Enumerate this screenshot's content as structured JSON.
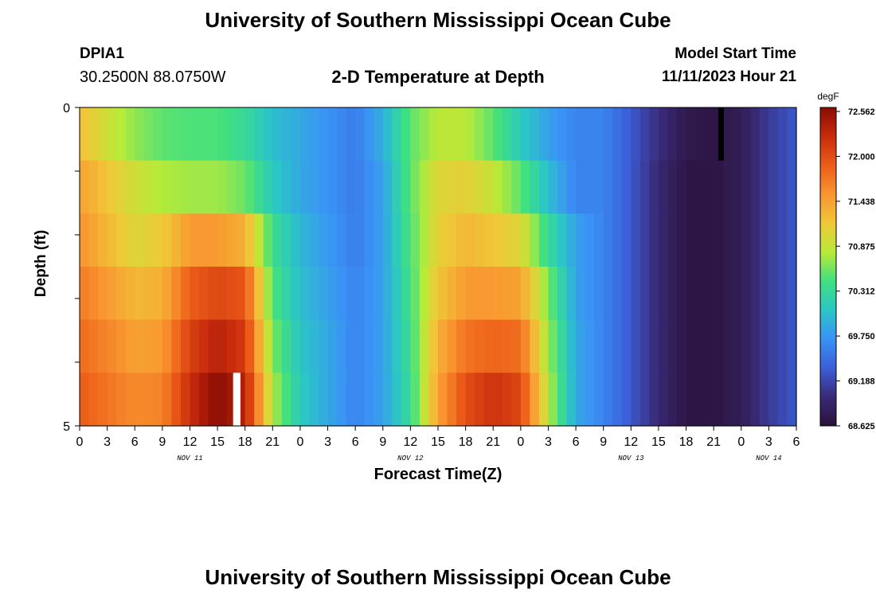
{
  "header": {
    "title": "University of Southern Mississippi Ocean Cube",
    "station": "DPIA1",
    "coordinates": "30.2500N  88.0750W",
    "subtitle": "2-D Temperature at Depth",
    "model_start_label": "Model Start Time",
    "model_start_value": "11/11/2023 Hour 21"
  },
  "footer": {
    "title": "University of Southern Mississippi Ocean Cube"
  },
  "chart_data": {
    "type": "heatmap",
    "xlabel": "Forecast Time(Z)",
    "ylabel": "Depth (ft)",
    "x_tick_labels": [
      "0",
      "3",
      "6",
      "9",
      "12",
      "15",
      "18",
      "21",
      "0",
      "3",
      "6",
      "9",
      "12",
      "15",
      "18",
      "21",
      "0",
      "3",
      "6",
      "9",
      "12",
      "15",
      "18",
      "21",
      "0",
      "3",
      "6"
    ],
    "day_labels": [
      "NOV 11",
      "NOV 12",
      "NOV 13",
      "NOV 14"
    ],
    "x_range_hours": [
      0,
      78
    ],
    "y_tick_labels": [
      "0",
      "5"
    ],
    "depth_range_ft": [
      0,
      5
    ],
    "depth_layers": 6,
    "colorbar": {
      "unit": "degF",
      "labels": [
        "72.562",
        "72.000",
        "71.438",
        "70.875",
        "70.312",
        "69.750",
        "69.188",
        "68.625"
      ],
      "min": 68.625,
      "max": 72.562,
      "colors": [
        "#2a1138",
        "#3a2a78",
        "#3b5fd8",
        "#3a92f6",
        "#2bc6c6",
        "#40e080",
        "#b8ea38",
        "#f0c838",
        "#f99530",
        "#ec5d18",
        "#c82b0c",
        "#8a0c04"
      ]
    },
    "rows": [
      {
        "hours": [
          0,
          3,
          6,
          9,
          12,
          15,
          18,
          21,
          24,
          27,
          30,
          33,
          36,
          39,
          42,
          45,
          48,
          51,
          54,
          57,
          60,
          63,
          66,
          69,
          72,
          75,
          78
        ],
        "values": [
          71.2,
          70.9,
          70.65,
          70.5,
          70.45,
          70.45,
          70.3,
          70.0,
          69.85,
          69.7,
          69.55,
          69.9,
          70.5,
          70.8,
          70.8,
          70.5,
          70.1,
          69.8,
          69.6,
          69.6,
          69.3,
          69.0,
          68.75,
          68.7,
          68.8,
          69.1,
          69.3
        ]
      },
      {
        "hours": [
          0,
          3,
          6,
          9,
          12,
          15,
          18,
          21,
          24,
          27,
          30,
          33,
          36,
          39,
          42,
          45,
          48,
          51,
          54,
          57,
          60,
          63,
          66,
          69,
          72,
          75,
          78
        ],
        "values": [
          71.4,
          71.15,
          70.9,
          70.75,
          70.7,
          70.7,
          70.55,
          70.1,
          69.85,
          69.7,
          69.55,
          69.8,
          70.5,
          71.0,
          71.05,
          70.85,
          70.5,
          70.0,
          69.6,
          69.6,
          69.3,
          68.95,
          68.7,
          68.7,
          68.8,
          69.1,
          69.3
        ]
      },
      {
        "hours": [
          0,
          3,
          6,
          9,
          12,
          15,
          18,
          21,
          24,
          27,
          30,
          33,
          36,
          39,
          42,
          45,
          48,
          51,
          54,
          57,
          60,
          63,
          66,
          69,
          72,
          75,
          78
        ],
        "values": [
          71.5,
          71.25,
          71.0,
          71.1,
          71.45,
          71.45,
          71.3,
          70.35,
          69.95,
          69.75,
          69.55,
          69.8,
          70.45,
          71.05,
          71.25,
          71.15,
          71.0,
          70.3,
          69.8,
          69.6,
          69.3,
          68.95,
          68.7,
          68.7,
          68.8,
          69.1,
          69.3
        ]
      },
      {
        "hours": [
          0,
          3,
          6,
          9,
          12,
          15,
          18,
          21,
          24,
          27,
          30,
          33,
          36,
          39,
          42,
          45,
          48,
          51,
          54,
          57,
          60,
          63,
          66,
          69,
          72,
          75,
          78
        ],
        "values": [
          71.65,
          71.45,
          71.25,
          71.3,
          71.85,
          72.0,
          71.9,
          70.45,
          70.0,
          69.8,
          69.6,
          69.8,
          70.4,
          71.15,
          71.45,
          71.45,
          71.4,
          70.6,
          69.8,
          69.6,
          69.3,
          68.95,
          68.7,
          68.7,
          68.8,
          69.1,
          69.3
        ]
      },
      {
        "hours": [
          0,
          3,
          6,
          9,
          12,
          15,
          18,
          21,
          24,
          27,
          30,
          33,
          36,
          39,
          42,
          45,
          48,
          51,
          54,
          57,
          60,
          63,
          66,
          69,
          72,
          75,
          78
        ],
        "values": [
          71.75,
          71.6,
          71.4,
          71.45,
          72.05,
          72.3,
          72.1,
          70.6,
          70.05,
          69.85,
          69.6,
          69.8,
          70.35,
          71.3,
          71.7,
          71.8,
          71.75,
          70.7,
          69.85,
          69.6,
          69.3,
          68.95,
          68.7,
          68.7,
          68.8,
          69.1,
          69.3
        ]
      },
      {
        "hours": [
          0,
          3,
          6,
          9,
          12,
          15,
          18,
          21,
          24,
          27,
          30,
          33,
          36,
          39,
          42,
          45,
          48,
          51,
          54,
          57,
          60,
          63,
          66,
          69,
          72,
          75,
          78
        ],
        "values": [
          71.85,
          71.7,
          71.55,
          71.6,
          72.2,
          72.55,
          72.3,
          70.75,
          70.1,
          69.85,
          69.6,
          69.8,
          70.3,
          71.4,
          71.95,
          72.15,
          72.0,
          70.8,
          69.85,
          69.6,
          69.3,
          68.95,
          68.7,
          68.7,
          68.8,
          69.1,
          69.3
        ]
      }
    ],
    "gaps": [
      {
        "row": 0,
        "hour": 69.5,
        "hours_wide": 0.6,
        "color": "#000000"
      },
      {
        "row": 5,
        "hour": 16.7,
        "hours_wide": 0.8,
        "color": "#ffffff"
      }
    ]
  }
}
